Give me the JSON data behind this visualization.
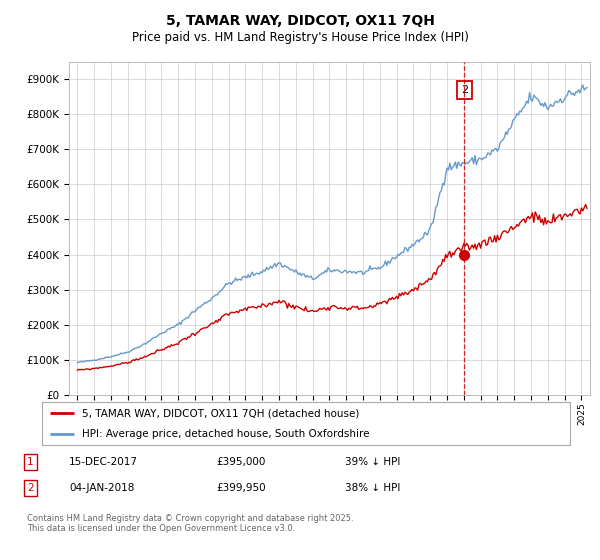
{
  "title": "5, TAMAR WAY, DIDCOT, OX11 7QH",
  "subtitle": "Price paid vs. HM Land Registry's House Price Index (HPI)",
  "legend_label_red": "5, TAMAR WAY, DIDCOT, OX11 7QH (detached house)",
  "legend_label_blue": "HPI: Average price, detached house, South Oxfordshire",
  "footnote": "Contains HM Land Registry data © Crown copyright and database right 2025.\nThis data is licensed under the Open Government Licence v3.0.",
  "transaction1_label": "1",
  "transaction1_date": "15-DEC-2017",
  "transaction1_price": "£395,000",
  "transaction1_hpi": "39% ↓ HPI",
  "transaction2_label": "2",
  "transaction2_date": "04-JAN-2018",
  "transaction2_price": "£399,950",
  "transaction2_hpi": "38% ↓ HPI",
  "red_color": "#cc0000",
  "blue_color": "#6699cc",
  "marker2_x": 2018.03,
  "marker2_y_red": 399950,
  "marker2_y_blue": 645000,
  "ylim_min": 0,
  "ylim_max": 950000,
  "xlim_min": 1994.5,
  "xlim_max": 2025.5,
  "background_color": "#ffffff",
  "grid_color": "#cccccc",
  "years_blue": [
    1995,
    1996,
    1997,
    1998,
    1999,
    2000,
    2001,
    2002,
    2003,
    2004,
    2005,
    2006,
    2007,
    2008,
    2009,
    2010,
    2011,
    2012,
    2013,
    2014,
    2015,
    2016,
    2017,
    2018,
    2019,
    2020,
    2021,
    2022,
    2023,
    2024,
    2025
  ],
  "vals_blue": [
    92000,
    99000,
    109000,
    122000,
    145000,
    175000,
    200000,
    240000,
    275000,
    318000,
    335000,
    352000,
    375000,
    350000,
    330000,
    355000,
    352000,
    348000,
    362000,
    395000,
    428000,
    468000,
    648000,
    660000,
    672000,
    700000,
    780000,
    850000,
    820000,
    850000,
    870000
  ],
  "vals_red": [
    70000,
    75000,
    82000,
    92000,
    108000,
    128000,
    148000,
    176000,
    200000,
    230000,
    243000,
    253000,
    268000,
    250000,
    237000,
    252000,
    248000,
    247000,
    258000,
    278000,
    300000,
    330000,
    395000,
    415000,
    430000,
    450000,
    480000,
    510000,
    490000,
    510000,
    530000
  ]
}
